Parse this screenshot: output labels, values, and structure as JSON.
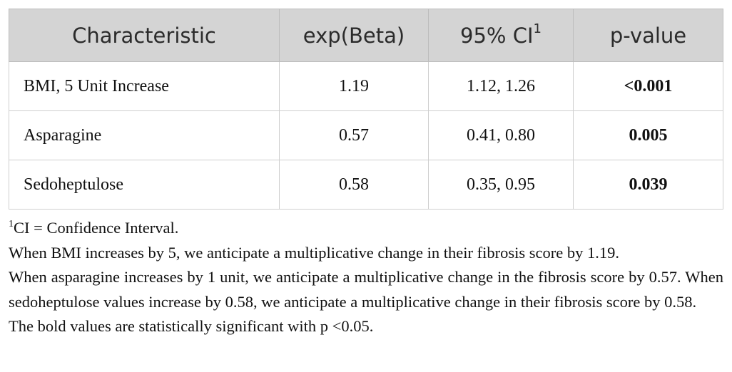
{
  "table": {
    "header": [
      "Characteristic",
      "exp(Beta)",
      "95% CI",
      "p-value"
    ],
    "header_marker": "1",
    "rows": [
      [
        "BMI, 5 Unit Increase",
        "1.19",
        "1.12, 1.26",
        "<0.001"
      ],
      [
        "Asparagine",
        "0.57",
        "0.41, 0.80",
        "0.005"
      ],
      [
        "Sedoheptulose",
        "0.58",
        "0.35, 0.95",
        "0.039"
      ]
    ]
  },
  "footnote": {
    "marker": "1",
    "text": "CI = Confidence Interval."
  },
  "notes": [
    "When BMI increases by 5, we anticipate a multiplicative change in their fibrosis score by 1.19.",
    "When asparagine increases by 1 unit, we anticipate a multiplicative change in the fibrosis score by 0.57. When sedoheptulose values increase by 0.58, we anticipate a multiplicative change in their fibrosis score by 0.58.",
    "The bold values are statistically significant with p <0.05."
  ]
}
